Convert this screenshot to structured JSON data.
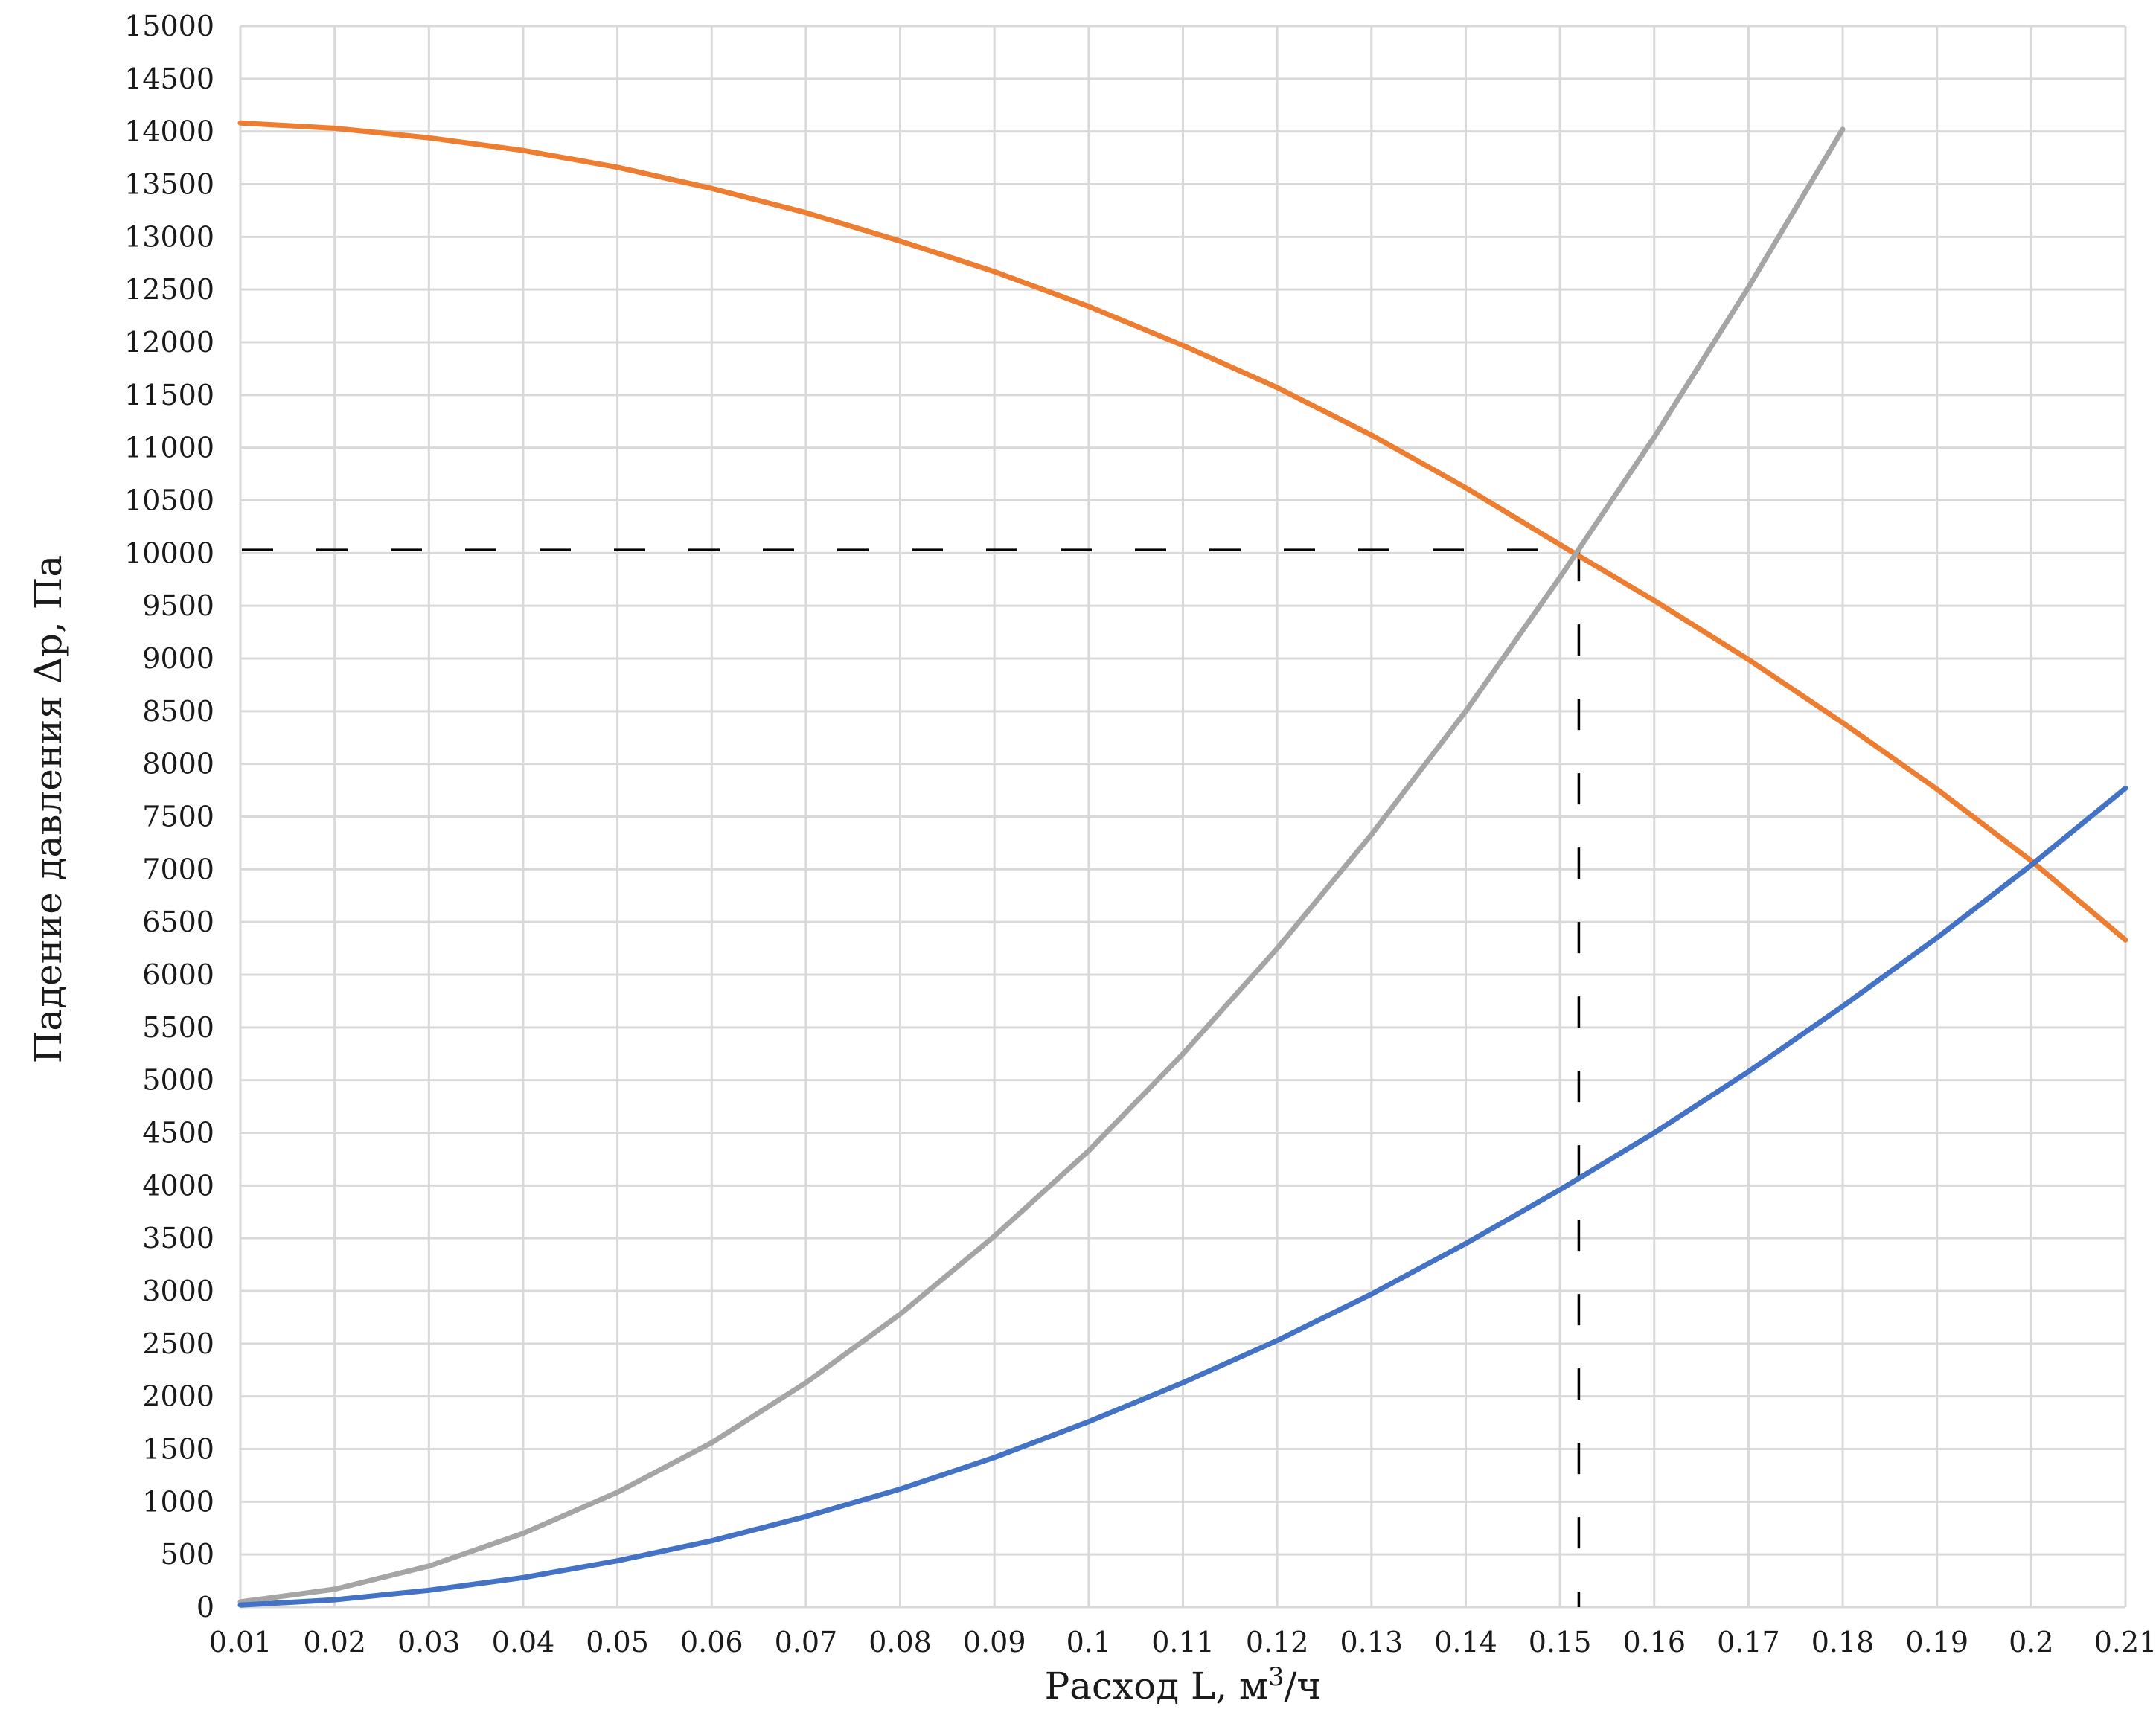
{
  "chart_data": {
    "type": "line",
    "xlabel": "Расход L, м",
    "xlabel_sup": "3",
    "xlabel_tail": "/ч",
    "ylabel": "Падение давления Δp, Па",
    "xlim": [
      0.01,
      0.21
    ],
    "ylim": [
      0,
      15000
    ],
    "x_ticks": [
      "0.01",
      "0.02",
      "0.03",
      "0.04",
      "0.05",
      "0.06",
      "0.07",
      "0.08",
      "0.09",
      "0.1",
      "0.11",
      "0.12",
      "0.13",
      "0.14",
      "0.15",
      "0.16",
      "0.17",
      "0.18",
      "0.19",
      "0.2",
      "0.21"
    ],
    "y_ticks": [
      "0",
      "500",
      "1000",
      "1500",
      "2000",
      "2500",
      "3000",
      "3500",
      "4000",
      "4500",
      "5000",
      "5500",
      "6000",
      "6500",
      "7000",
      "7500",
      "8000",
      "8500",
      "9000",
      "9500",
      "10000",
      "10500",
      "11000",
      "11500",
      "12000",
      "12500",
      "13000",
      "13500",
      "14000",
      "14500",
      "15000"
    ],
    "grid": true,
    "legend": "none",
    "series": [
      {
        "color": "#ED7D31",
        "x": [
          0.01,
          0.02,
          0.03,
          0.04,
          0.05,
          0.06,
          0.07,
          0.08,
          0.09,
          0.1,
          0.11,
          0.12,
          0.13,
          0.14,
          0.15,
          0.16,
          0.17,
          0.18,
          0.19,
          0.2,
          0.21
        ],
        "y": [
          14080,
          14030,
          13940,
          13820,
          13660,
          13460,
          13230,
          12960,
          12670,
          12340,
          11970,
          11570,
          11120,
          10620,
          10080,
          9550,
          8990,
          8390,
          7760,
          7080,
          6330
        ]
      },
      {
        "color": "#A5A5A5",
        "x": [
          0.01,
          0.02,
          0.03,
          0.04,
          0.05,
          0.06,
          0.07,
          0.08,
          0.09,
          0.1,
          0.11,
          0.12,
          0.13,
          0.14,
          0.15,
          0.16,
          0.17,
          0.18
        ],
        "y": [
          50,
          170,
          390,
          700,
          1090,
          1560,
          2130,
          2780,
          3520,
          4330,
          5250,
          6250,
          7330,
          8500,
          9770,
          11100,
          12520,
          14020
        ]
      },
      {
        "color": "#4472C4",
        "x": [
          0.01,
          0.02,
          0.03,
          0.04,
          0.05,
          0.06,
          0.07,
          0.08,
          0.09,
          0.1,
          0.11,
          0.12,
          0.13,
          0.14,
          0.15,
          0.16,
          0.17,
          0.18,
          0.19,
          0.2,
          0.21
        ],
        "y": [
          20,
          70,
          160,
          280,
          440,
          630,
          860,
          1120,
          1420,
          1760,
          2130,
          2530,
          2970,
          3450,
          3960,
          4500,
          5080,
          5700,
          6350,
          7040,
          7770
        ]
      }
    ],
    "reference_lines": {
      "color": "#000000",
      "horizontal_y": 10030,
      "vertical_x": 0.152
    }
  }
}
